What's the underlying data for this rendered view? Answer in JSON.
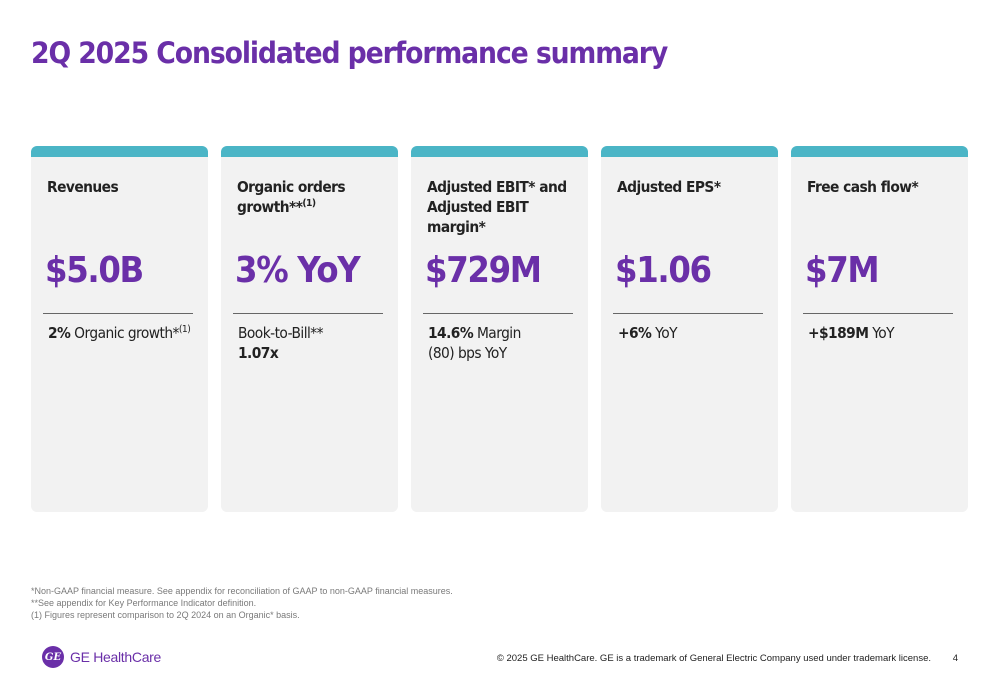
{
  "title": "2Q 2025 Consolidated performance summary",
  "colors": {
    "accent": "#6a2fa8",
    "card_bar": "#4bb5c6",
    "card_bg": "#f2f2f2"
  },
  "cards": [
    {
      "label": "Revenues",
      "value": "$5.0B",
      "sub_bold": "2%",
      "sub_text": " Organic growth*",
      "sub_sup": "(1)"
    },
    {
      "label": "Organic orders growth**",
      "label_sup": "(1)",
      "value": "3% YoY",
      "sub_line1": "Book-to-Bill**",
      "sub_line2_bold": "1.07x"
    },
    {
      "label": "Adjusted EBIT* and Adjusted EBIT margin*",
      "value": "$729M",
      "sub_bold": "14.6%",
      "sub_text": " Margin",
      "sub_line2": "(80) bps YoY"
    },
    {
      "label": "Adjusted EPS*",
      "value": "$1.06",
      "sub_bold": "+6%",
      "sub_text": " YoY"
    },
    {
      "label": "Free cash flow*",
      "value": "$7M",
      "sub_bold": "+$189M",
      "sub_text": " YoY"
    }
  ],
  "footnotes": [
    "*Non-GAAP financial measure. See appendix for reconciliation of GAAP to non-GAAP financial measures.",
    "**See appendix for Key Performance Indicator definition.",
    "(1) Figures represent comparison to 2Q 2024 on an Organic* basis."
  ],
  "logo": {
    "mark": "GE",
    "text": "GE HealthCare",
    "icon": "ge-monogram-icon"
  },
  "copyright": "© 2025 GE HealthCare. GE is a trademark of General Electric Company used under trademark license.",
  "page_number": "4"
}
